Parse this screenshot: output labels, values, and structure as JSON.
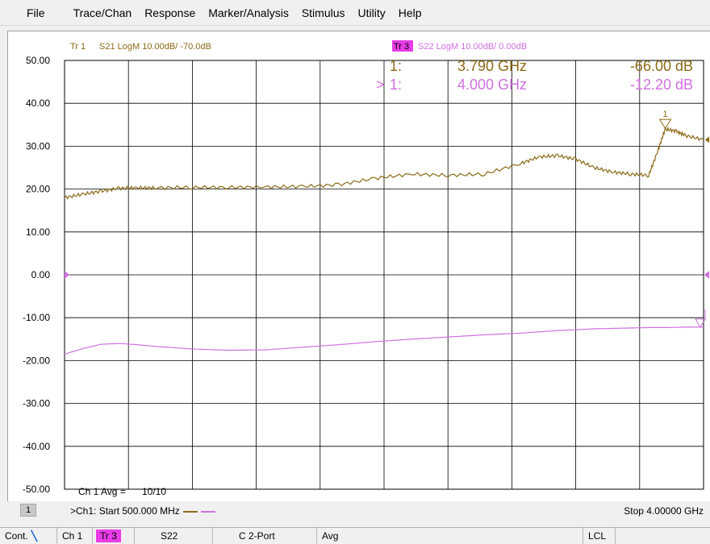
{
  "menu": [
    "File",
    "Trace/Chan",
    "Response",
    "Marker/Analysis",
    "Stimulus",
    "Utility",
    "Help"
  ],
  "traces": {
    "tr1": {
      "label": "Tr 1",
      "desc": "S21 LogM 10.00dB/ -70.0dB",
      "color": "#8b6a16"
    },
    "tr3": {
      "label": "Tr 3",
      "desc": "S22 LogM 10.00dB/ 0.00dB",
      "color": "#d070e0",
      "badge_color": "#e83ce6"
    }
  },
  "markers": {
    "tr1": {
      "id": "1:",
      "freq": "3.790 GHz",
      "value": "-66.00 dB"
    },
    "tr3": {
      "active": ">",
      "id": "1:",
      "freq": "4.000 GHz",
      "value": "-12.20 dB"
    },
    "flag_label": "1"
  },
  "averaging": {
    "label": "Ch 1 Avg =",
    "value": "10/10"
  },
  "channel": {
    "number": "1",
    "start": ">Ch1: Start  500.000 MHz",
    "stop": "Stop  4.00000 GHz"
  },
  "status_bar": {
    "mode": "Cont.",
    "channel": "Ch 1",
    "trace": "Tr 3",
    "param": "S22",
    "cal": "C  2-Port",
    "avg": "Avg",
    "remote": "LCL"
  },
  "chart_data": {
    "type": "line",
    "x": [
      0.5,
      0.6,
      0.7,
      0.8,
      0.9,
      1.0,
      1.2,
      1.4,
      1.6,
      1.8,
      2.0,
      2.2,
      2.4,
      2.6,
      2.8,
      3.0,
      3.1,
      3.2,
      3.3,
      3.4,
      3.5,
      3.6,
      3.7,
      3.75,
      3.79,
      3.85,
      3.9,
      4.0
    ],
    "xlim": [
      0.5,
      4.0
    ],
    "ylim": [
      -50,
      50
    ],
    "y_ticks": [
      "50.00",
      "40.00",
      "30.00",
      "20.00",
      "10.00",
      "0.00",
      "-10.00",
      "-20.00",
      "-30.00",
      "-40.00",
      "-50.00"
    ],
    "series": [
      {
        "name": "S21",
        "values": [
          18,
          18.8,
          19.5,
          20.2,
          20.3,
          20.3,
          20.4,
          20.4,
          20.5,
          20.6,
          21,
          22.5,
          23.5,
          23.2,
          23.5,
          26,
          27.5,
          27.8,
          27,
          25,
          24,
          23.5,
          23.2,
          29,
          34,
          33.5,
          32.5,
          31.5
        ]
      },
      {
        "name": "S22",
        "values": [
          -18.5,
          -17.2,
          -16.2,
          -16.0,
          -16.3,
          -16.7,
          -17.3,
          -17.6,
          -17.5,
          -16.9,
          -16.3,
          -15.6,
          -15.0,
          -14.5,
          -14.0,
          -13.6,
          -13.3,
          -13.0,
          -12.8,
          -12.6,
          -12.5,
          -12.4,
          -12.3,
          -12.3,
          -12.3,
          -12.25,
          -12.2,
          -12.2
        ]
      }
    ]
  }
}
